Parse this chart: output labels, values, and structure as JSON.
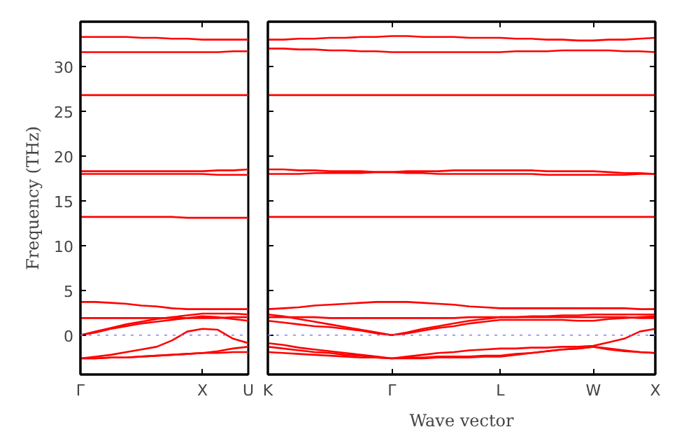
{
  "chart_data": [
    {
      "type": "line",
      "ylabel": "Frequency (THz)",
      "ylim": [
        -4.4,
        35
      ],
      "categories": [
        "Γ",
        null,
        null,
        null,
        null,
        null,
        null,
        null,
        "X",
        null,
        null,
        "U"
      ],
      "yticks": [
        0,
        5,
        10,
        15,
        20,
        25,
        30
      ],
      "grid": false,
      "line_style": "solid",
      "ref_lines": [
        {
          "axis": "y",
          "value": 0,
          "color": "#7f7fff",
          "line_style": "dotted"
        }
      ],
      "series": [
        {
          "color": "#ff0000",
          "values": [
            33.3,
            33.3,
            33.3,
            33.3,
            33.2,
            33.2,
            33.1,
            33.1,
            33.0,
            33.0,
            33.0,
            33.0
          ]
        },
        {
          "color": "#ff0000",
          "values": [
            31.6,
            31.6,
            31.6,
            31.6,
            31.6,
            31.6,
            31.6,
            31.6,
            31.6,
            31.6,
            31.7,
            31.7
          ]
        },
        {
          "color": "#ff0000",
          "values": [
            26.8,
            26.8,
            26.8,
            26.8,
            26.8,
            26.8,
            26.8,
            26.8,
            26.8,
            26.8,
            26.8,
            26.8
          ]
        },
        {
          "color": "#ff0000",
          "values": [
            18.3,
            18.3,
            18.3,
            18.3,
            18.3,
            18.3,
            18.3,
            18.3,
            18.3,
            18.4,
            18.4,
            18.5
          ]
        },
        {
          "color": "#ff0000",
          "values": [
            18.0,
            18.0,
            18.0,
            18.0,
            18.0,
            18.0,
            18.0,
            18.0,
            18.0,
            17.9,
            17.9,
            17.9
          ]
        },
        {
          "color": "#ff0000",
          "values": [
            13.2,
            13.2,
            13.2,
            13.2,
            13.2,
            13.2,
            13.2,
            13.1,
            13.1,
            13.1,
            13.1,
            13.1
          ]
        },
        {
          "color": "#ff0000",
          "values": [
            3.7,
            3.7,
            3.6,
            3.5,
            3.3,
            3.2,
            3.0,
            2.9,
            2.9,
            2.9,
            2.9,
            2.9
          ]
        },
        {
          "color": "#ff0000",
          "values": [
            1.9,
            1.9,
            1.9,
            1.9,
            1.9,
            1.9,
            1.9,
            1.9,
            1.9,
            1.9,
            2.0,
            2.0
          ]
        },
        {
          "color": "#ff0000",
          "values": [
            0,
            0.4,
            0.8,
            1.2,
            1.5,
            1.8,
            2.0,
            2.2,
            2.4,
            2.4,
            2.4,
            2.3
          ]
        },
        {
          "color": "#ff0000",
          "values": [
            0,
            0.3,
            0.7,
            1.0,
            1.3,
            1.5,
            1.7,
            1.9,
            2.1,
            2.0,
            1.8,
            1.6
          ]
        },
        {
          "color": "#ff0000",
          "values": [
            -2.6,
            -2.4,
            -2.2,
            -1.9,
            -1.6,
            -1.3,
            -0.6,
            0.4,
            0.7,
            0.6,
            -0.4,
            -0.9
          ]
        },
        {
          "color": "#ff0000",
          "values": [
            -2.6,
            -2.6,
            -2.5,
            -2.5,
            -2.4,
            -2.3,
            -2.2,
            -2.1,
            -2.0,
            -1.8,
            -1.5,
            -1.3
          ]
        },
        {
          "color": "#ff0000",
          "values": [
            -2.6,
            -2.6,
            -2.5,
            -2.5,
            -2.4,
            -2.3,
            -2.2,
            -2.1,
            -2.0,
            -2.0,
            -1.9,
            -1.9
          ]
        }
      ]
    },
    {
      "type": "line",
      "xlabel": "Wave vector",
      "ylim": [
        -4.4,
        35
      ],
      "categories": [
        "K",
        null,
        null,
        null,
        null,
        null,
        null,
        null,
        "Γ",
        null,
        null,
        null,
        null,
        null,
        null,
        "L",
        null,
        null,
        null,
        null,
        null,
        "W",
        null,
        null,
        null,
        "X"
      ],
      "yticks": [
        0,
        5,
        10,
        15,
        20,
        25,
        30
      ],
      "tick_labels": "x",
      "grid": false,
      "line_style": "solid",
      "ref_lines": [
        {
          "axis": "y",
          "value": 0,
          "color": "#7f7fff",
          "line_style": "dotted"
        }
      ],
      "series": [
        {
          "color": "#ff0000",
          "values": [
            33.0,
            33.0,
            33.1,
            33.1,
            33.2,
            33.2,
            33.3,
            33.3,
            33.4,
            33.4,
            33.3,
            33.3,
            33.3,
            33.2,
            33.2,
            33.2,
            33.1,
            33.1,
            33.0,
            33.0,
            32.9,
            32.9,
            33.0,
            33.0,
            33.1,
            33.2
          ]
        },
        {
          "color": "#ff0000",
          "values": [
            32.0,
            32.0,
            31.9,
            31.9,
            31.8,
            31.8,
            31.7,
            31.7,
            31.6,
            31.6,
            31.6,
            31.6,
            31.6,
            31.6,
            31.6,
            31.6,
            31.7,
            31.7,
            31.7,
            31.8,
            31.8,
            31.8,
            31.8,
            31.7,
            31.7,
            31.6
          ]
        },
        {
          "color": "#ff0000",
          "values": [
            26.8,
            26.8,
            26.8,
            26.8,
            26.8,
            26.8,
            26.8,
            26.8,
            26.8,
            26.8,
            26.8,
            26.8,
            26.8,
            26.8,
            26.8,
            26.8,
            26.8,
            26.8,
            26.8,
            26.8,
            26.8,
            26.8,
            26.8,
            26.8,
            26.8,
            26.8
          ]
        },
        {
          "color": "#ff0000",
          "values": [
            18.5,
            18.5,
            18.4,
            18.4,
            18.3,
            18.3,
            18.3,
            18.2,
            18.2,
            18.3,
            18.3,
            18.3,
            18.4,
            18.4,
            18.4,
            18.4,
            18.4,
            18.4,
            18.3,
            18.3,
            18.3,
            18.3,
            18.2,
            18.1,
            18.1,
            18.0
          ]
        },
        {
          "color": "#ff0000",
          "values": [
            18.0,
            18.0,
            18.0,
            18.1,
            18.1,
            18.1,
            18.1,
            18.2,
            18.2,
            18.1,
            18.1,
            18.0,
            18.0,
            18.0,
            18.0,
            18.0,
            18.0,
            18.0,
            17.9,
            17.9,
            17.9,
            17.9,
            17.9,
            17.9,
            18.0,
            18.0
          ]
        },
        {
          "color": "#ff0000",
          "values": [
            13.2,
            13.2,
            13.2,
            13.2,
            13.2,
            13.2,
            13.2,
            13.2,
            13.2,
            13.2,
            13.2,
            13.2,
            13.2,
            13.2,
            13.2,
            13.2,
            13.2,
            13.2,
            13.2,
            13.2,
            13.2,
            13.2,
            13.2,
            13.2,
            13.2,
            13.2
          ]
        },
        {
          "color": "#ff0000",
          "values": [
            2.9,
            3.0,
            3.1,
            3.3,
            3.4,
            3.5,
            3.6,
            3.7,
            3.7,
            3.7,
            3.6,
            3.5,
            3.4,
            3.2,
            3.1,
            3.0,
            3.0,
            3.0,
            3.0,
            3.0,
            3.0,
            3.0,
            3.0,
            3.0,
            2.9,
            2.9
          ]
        },
        {
          "color": "#ff0000",
          "values": [
            2.0,
            2.0,
            2.0,
            2.0,
            1.9,
            1.9,
            1.9,
            1.9,
            1.9,
            1.9,
            1.9,
            1.9,
            1.9,
            2.0,
            2.0,
            2.0,
            2.0,
            2.0,
            2.0,
            2.0,
            2.0,
            2.0,
            2.0,
            2.0,
            1.9,
            1.9
          ]
        },
        {
          "color": "#ff0000",
          "values": [
            2.3,
            2.1,
            1.8,
            1.5,
            1.2,
            0.9,
            0.6,
            0.3,
            0,
            0.3,
            0.7,
            1.0,
            1.3,
            1.6,
            1.8,
            2.0,
            2.0,
            2.1,
            2.1,
            2.2,
            2.2,
            2.3,
            2.3,
            2.3,
            2.3,
            2.3
          ]
        },
        {
          "color": "#ff0000",
          "values": [
            1.6,
            1.4,
            1.2,
            1.0,
            0.9,
            0.7,
            0.5,
            0.2,
            0,
            0.2,
            0.5,
            0.8,
            1.0,
            1.3,
            1.5,
            1.7,
            1.7,
            1.7,
            1.7,
            1.7,
            1.6,
            1.6,
            1.8,
            1.9,
            2.0,
            2.1
          ]
        },
        {
          "color": "#ff0000",
          "values": [
            -0.9,
            -1.1,
            -1.4,
            -1.6,
            -1.8,
            -2.0,
            -2.2,
            -2.4,
            -2.6,
            -2.4,
            -2.2,
            -2.0,
            -1.9,
            -1.7,
            -1.6,
            -1.5,
            -1.5,
            -1.4,
            -1.4,
            -1.3,
            -1.3,
            -1.2,
            -0.8,
            -0.4,
            0.4,
            0.7
          ]
        },
        {
          "color": "#ff0000",
          "values": [
            -1.3,
            -1.5,
            -1.7,
            -1.9,
            -2.0,
            -2.2,
            -2.3,
            -2.5,
            -2.6,
            -2.5,
            -2.5,
            -2.4,
            -2.4,
            -2.4,
            -2.3,
            -2.3,
            -2.1,
            -2.0,
            -1.8,
            -1.6,
            -1.5,
            -1.3,
            -1.5,
            -1.7,
            -1.9,
            -2.0
          ]
        },
        {
          "color": "#ff0000",
          "values": [
            -1.9,
            -2.0,
            -2.1,
            -2.2,
            -2.3,
            -2.4,
            -2.5,
            -2.5,
            -2.6,
            -2.6,
            -2.6,
            -2.5,
            -2.5,
            -2.5,
            -2.4,
            -2.4,
            -2.2,
            -2.0,
            -1.8,
            -1.6,
            -1.5,
            -1.3,
            -1.6,
            -1.8,
            -1.9,
            -2.0
          ]
        }
      ]
    }
  ]
}
